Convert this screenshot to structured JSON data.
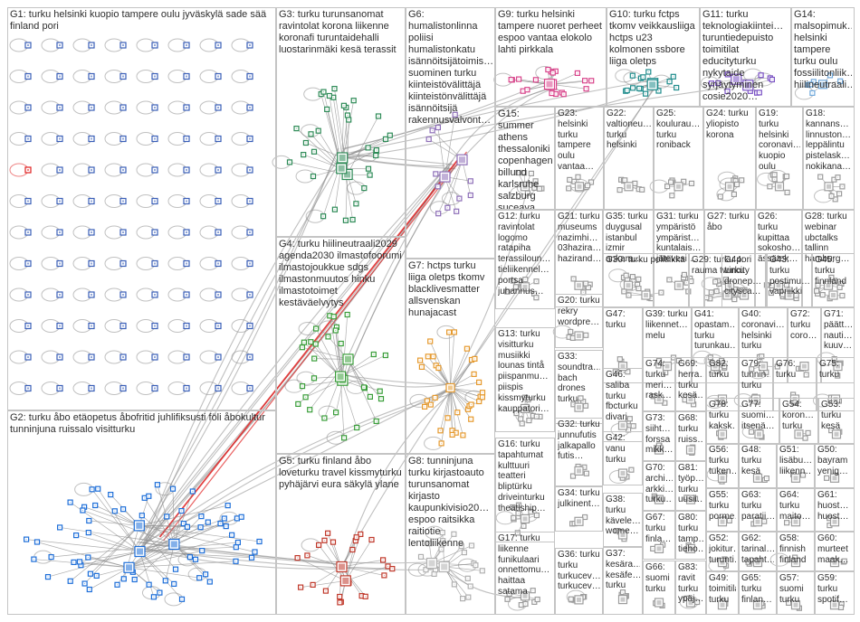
{
  "colors": {
    "edge": "#8c8c8c",
    "red_edge": "#e02020",
    "box_border": "#c4c4c4",
    "label": "#2e2e2e",
    "G1": "#3a5fb8",
    "G2": "#1e6fd9",
    "G3": "#2e8b57",
    "G4": "#3a9e3a",
    "G5": "#c0392b",
    "G6": "#8e6fb8",
    "G7": "#e69a2e",
    "G8": "#b0b0b0",
    "G9": "#d9468c",
    "G10": "#1f8c8c",
    "G11": "#7a52c4",
    "G14": "#6fa8dc",
    "other": "#9c9c9c"
  },
  "groups": [
    {
      "id": "G1",
      "label": "G1: turku helsinki kuopio tampere oulu jyväskylä sade sää finland pori"
    },
    {
      "id": "G2",
      "label": "G2: turku åbo etäopetus åbofritid juhlifiksusti föli åbokultur tunninjuna ruissalo visitturku"
    },
    {
      "id": "G3",
      "label": "G3: turku turunsanomat ravintolat korona liikenne koronafi turuntaidehalli luostarinmäki kesä terassit"
    },
    {
      "id": "G4",
      "label": "G4: turku hiilineutraali2029 agenda2030 ilmastofoorumi ilmastojoukkue sdgs ilmastonmuutos hinku ilmastotoimet kestäväelvytys"
    },
    {
      "id": "G5",
      "label": "G5: turku finland åbo loveturku travel kissmyturku pyhäjärvi eura säkylä ylane"
    },
    {
      "id": "G6",
      "label": "G6: humalistonlinna poliisi humalistonkatu isännöitsijätoimis… suominen turku kiinteistövälittäjä kiinteistönvälittäjä isännöitsijä rakennusvalvont…"
    },
    {
      "id": "G7",
      "label": "G7: hctps turku liiga oletps tkomv blacklivesmatter allsvenskan hunajacast"
    },
    {
      "id": "G8",
      "label": "G8: tunninjuna turku kirjastoauto turunsanomat kirjasto kaupunkivisio20… espoo raitsikka raitiotie lentoliikenne"
    },
    {
      "id": "G9",
      "label": "G9: turku helsinki tampere nuoret perheet espoo vantaa elokolo lahti pirkkala"
    },
    {
      "id": "G10",
      "label": "G10: turku fctps tkomv veikkausliiga hctps u23 kolmonen ssbore liiga oletps"
    },
    {
      "id": "G11",
      "label": "G11: turku teknologiakiintei… turuntiedepuisto toimitilat educityturku nykytaide syrjäytyminen cosie2020…"
    },
    {
      "id": "G14",
      "label": "G14: malsopimuk… helsinki tampere turku oulu fossiilitonliik… hiilineutraali…"
    },
    {
      "id": "G15",
      "label": "G15: summer athens thessaloniki copenhagen billund karlsruhe salzburg suceava…"
    },
    {
      "id": "G23",
      "label": "G23: helsinki turku tampere oulu vantaa…"
    },
    {
      "id": "G22",
      "label": "G22: valtioneu… turku helsinki"
    },
    {
      "id": "G25",
      "label": "G25: koulurau… turku roniback"
    },
    {
      "id": "G24",
      "label": "G24: turku yliopisto korona"
    },
    {
      "id": "G19",
      "label": "G19: turku helsinki coronavi… kuopio oulu"
    },
    {
      "id": "G18",
      "label": "G18: kannans… linnuston… leppälintu pistelask… nokikana…"
    },
    {
      "id": "G21",
      "label": "G21: turku museums nazimhi… 03hazira… hazirand…"
    },
    {
      "id": "G35",
      "label": "G35: turku duygusal istanbul izmir ankara…"
    },
    {
      "id": "G31",
      "label": "G31: turku ympäristö ympärist… kuntalais… jätevesi…"
    },
    {
      "id": "G27",
      "label": "G27: turku åbo"
    },
    {
      "id": "G26",
      "label": "G26: turku kupittaa sokosho… ässätek…"
    },
    {
      "id": "G28",
      "label": "G28: turku webinar ubctalks tallinn hamburg…"
    },
    {
      "id": "G12",
      "label": "G12: turku ravintolat logomo ratapiha terassiloun… tieliikennel… portsa juhannus…"
    },
    {
      "id": "G30",
      "label": "G30: turku politiikka"
    },
    {
      "id": "G29",
      "label": "G29: turku pori rauma twincity"
    },
    {
      "id": "G44",
      "label": "G44: turku dronep… citysca…"
    },
    {
      "id": "G43",
      "label": "G43: turku postimu… vapriikki"
    },
    {
      "id": "G45",
      "label": "G45: turku finnland"
    },
    {
      "id": "G20",
      "label": "G20: turku rekry wordpre…"
    },
    {
      "id": "G47",
      "label": "G47: turku"
    },
    {
      "id": "G39",
      "label": "G39: turku liikennet… melu"
    },
    {
      "id": "G41",
      "label": "G41: opastam… turku turunkau…"
    },
    {
      "id": "G40",
      "label": "G40: coronavi… helsinki turku"
    },
    {
      "id": "G72",
      "label": "G72: turku coro…"
    },
    {
      "id": "G71",
      "label": "G71: päätt… nauti… kuuv…"
    },
    {
      "id": "G13",
      "label": "G13: turku visitturku musiikki lounas tintå piispanmu… piispis kissmyturku kauppatori…"
    },
    {
      "id": "G33",
      "label": "G33: soundtra… bach drones turku"
    },
    {
      "id": "G46",
      "label": "G46: saliba turku fbcturku divari"
    },
    {
      "id": "G74",
      "label": "G74: turku meri… rask…"
    },
    {
      "id": "G69",
      "label": "G69: herra… turku kesä…"
    },
    {
      "id": "G82",
      "label": "G82: turku"
    },
    {
      "id": "G79",
      "label": "G79: tunnin… turku"
    },
    {
      "id": "G76",
      "label": "G76: turku"
    },
    {
      "id": "G75",
      "label": "G75: turku"
    },
    {
      "id": "G73",
      "label": "G73: siiht… forssa mikk…"
    },
    {
      "id": "G68",
      "label": "G68: turku ruiss…"
    },
    {
      "id": "G78",
      "label": "G78: turku kaksk…"
    },
    {
      "id": "G77",
      "label": "G77: suomi… itsenä…"
    },
    {
      "id": "G54",
      "label": "G54: koron… turku"
    },
    {
      "id": "G53",
      "label": "G53: turku kesä"
    },
    {
      "id": "G32",
      "label": "G32: turku junnufutis jalkapallo futis…"
    },
    {
      "id": "G42",
      "label": "G42: vanu turku"
    },
    {
      "id": "G56",
      "label": "G56: turku tuken…"
    },
    {
      "id": "G48",
      "label": "G48: turku kesä"
    },
    {
      "id": "G51",
      "label": "G51: lisäbu… liikenn…"
    },
    {
      "id": "G50",
      "label": "G50: bayram yenig…"
    },
    {
      "id": "G16",
      "label": "G16: turku tapahtumat kulttuuri teatteri bliptürku driveinturku theatlship…"
    },
    {
      "id": "G34",
      "label": "G34: turku julkinent…"
    },
    {
      "id": "G70",
      "label": "G70: archi… arkki… turku…"
    },
    {
      "id": "G81",
      "label": "G81: työp… turku uusii…"
    },
    {
      "id": "G55",
      "label": "G55: turku porme…"
    },
    {
      "id": "G63",
      "label": "G63: turku paratii…"
    },
    {
      "id": "G64",
      "label": "G64: turku maito…"
    },
    {
      "id": "G61",
      "label": "G61: huost… huost…"
    },
    {
      "id": "G38",
      "label": "G38: turku kävele… wome…"
    },
    {
      "id": "G67",
      "label": "G67: turku finla…"
    },
    {
      "id": "G80",
      "label": "G80: turku tamp… tieho…"
    },
    {
      "id": "G52",
      "label": "G52: jokitur… turunti…"
    },
    {
      "id": "G62",
      "label": "G62: tarinal… tapaht…"
    },
    {
      "id": "G58",
      "label": "G58: finnish finland"
    },
    {
      "id": "G60",
      "label": "G60: murteet maak…"
    },
    {
      "id": "G17",
      "label": "G17: turku liikenne funikulaari onnettomu… haittaa satama"
    },
    {
      "id": "G36",
      "label": "G36: turku turku turkucev… turkucev…"
    },
    {
      "id": "G37",
      "label": "G37: kesära… kesäfe… turku"
    },
    {
      "id": "G66",
      "label": "G66: suomi turku"
    },
    {
      "id": "G83",
      "label": "G83: ravit turku ypäj…"
    },
    {
      "id": "G49",
      "label": "G49: toimitila turku"
    },
    {
      "id": "G65",
      "label": "G65: turku finlan…"
    },
    {
      "id": "G57",
      "label": "G57: suomi turku"
    },
    {
      "id": "G59",
      "label": "G59: turku spotif…"
    }
  ]
}
